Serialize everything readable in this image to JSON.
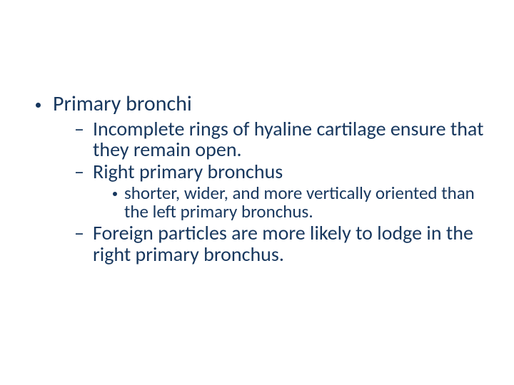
{
  "text_color": "#17375e",
  "background_color": "#ffffff",
  "slide": {
    "lvl1": {
      "text": "Primary bronchi"
    },
    "lvl2_a": {
      "text": "Incomplete rings of hyaline cartilage ensure that they remain open."
    },
    "lvl2_b": {
      "text": "Right primary bronchus"
    },
    "lvl3_a": {
      "text": "shorter, wider, and more vertically oriented than the left primary bronchus."
    },
    "lvl2_c": {
      "text": "Foreign particles are more likely to lodge in the right primary bronchus."
    }
  }
}
